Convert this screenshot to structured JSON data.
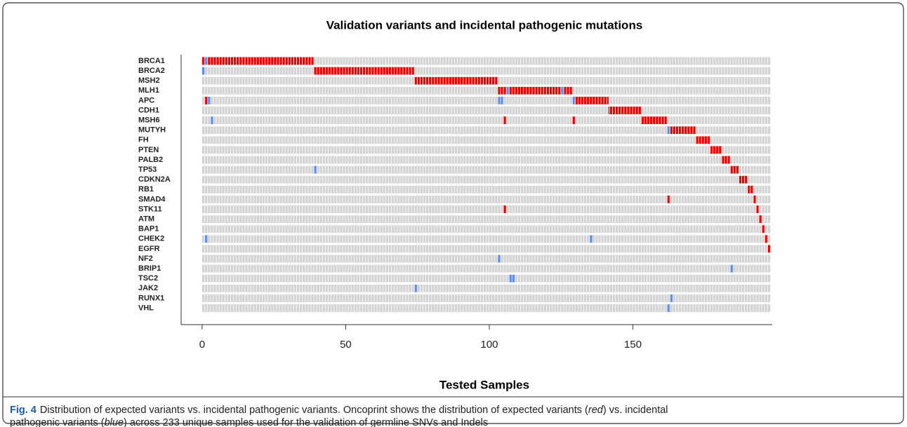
{
  "chart_data": {
    "type": "oncoprint",
    "title": "Validation variants and incidental pathogenic mutations",
    "x_label": "Tested Samples",
    "xlim": [
      -7.3,
      198.5
    ],
    "xticks": [
      0,
      50,
      100,
      150
    ],
    "series": [
      {
        "name": "expected",
        "color": "#ee0000"
      },
      {
        "name": "incidental",
        "color": "#5b8def"
      }
    ],
    "rows": [
      {
        "gene": "BRCA1",
        "expected": [
          [
            0,
            1
          ],
          [
            2,
            39
          ]
        ],
        "incidental": [
          [
            1,
            2
          ]
        ]
      },
      {
        "gene": "BRCA2",
        "expected": [
          [
            39,
            74
          ]
        ],
        "incidental": [
          [
            0,
            1
          ]
        ]
      },
      {
        "gene": "MSH2",
        "expected": [
          [
            74,
            103
          ]
        ],
        "incidental": []
      },
      {
        "gene": "MLH1",
        "expected": [
          [
            103,
            106
          ],
          [
            107,
            125
          ],
          [
            126,
            129
          ]
        ],
        "incidental": [
          [
            106,
            107
          ],
          [
            125,
            126
          ]
        ]
      },
      {
        "gene": "APC",
        "expected": [
          [
            1,
            2
          ],
          [
            130,
            141.5
          ]
        ],
        "incidental": [
          [
            2,
            3
          ],
          [
            103,
            105
          ],
          [
            129,
            130
          ]
        ]
      },
      {
        "gene": "CDH1",
        "expected": [
          [
            141.5,
            153
          ]
        ],
        "incidental": []
      },
      {
        "gene": "MSH6",
        "expected": [
          [
            105,
            106
          ],
          [
            129,
            130
          ],
          [
            153,
            162
          ]
        ],
        "incidental": [
          [
            3,
            4
          ]
        ]
      },
      {
        "gene": "MUTYH",
        "expected": [
          [
            163,
            172
          ]
        ],
        "incidental": [
          [
            162,
            163
          ]
        ]
      },
      {
        "gene": "FH",
        "expected": [
          [
            172,
            177
          ]
        ],
        "incidental": []
      },
      {
        "gene": "PTEN",
        "expected": [
          [
            177,
            181
          ]
        ],
        "incidental": []
      },
      {
        "gene": "PALB2",
        "expected": [
          [
            181,
            184
          ]
        ],
        "incidental": []
      },
      {
        "gene": "TP53",
        "expected": [
          [
            184,
            187
          ]
        ],
        "incidental": [
          [
            39,
            40
          ]
        ]
      },
      {
        "gene": "CDKN2A",
        "expected": [
          [
            187,
            190
          ]
        ],
        "incidental": []
      },
      {
        "gene": "RB1",
        "expected": [
          [
            190,
            192
          ]
        ],
        "incidental": []
      },
      {
        "gene": "SMAD4",
        "expected": [
          [
            162,
            163
          ],
          [
            192,
            193
          ]
        ],
        "incidental": []
      },
      {
        "gene": "STK11",
        "expected": [
          [
            105,
            106
          ],
          [
            193,
            194
          ]
        ],
        "incidental": []
      },
      {
        "gene": "ATM",
        "expected": [
          [
            194,
            195
          ]
        ],
        "incidental": []
      },
      {
        "gene": "BAP1",
        "expected": [
          [
            195,
            196
          ]
        ],
        "incidental": []
      },
      {
        "gene": "CHEK2",
        "expected": [
          [
            196,
            197
          ]
        ],
        "incidental": [
          [
            1,
            2
          ],
          [
            135,
            136
          ]
        ]
      },
      {
        "gene": "EGFR",
        "expected": [
          [
            197,
            198
          ]
        ],
        "incidental": []
      },
      {
        "gene": "NF2",
        "expected": [],
        "incidental": [
          [
            103,
            104
          ]
        ]
      },
      {
        "gene": "BRIP1",
        "expected": [],
        "incidental": [
          [
            184,
            185
          ]
        ]
      },
      {
        "gene": "TSC2",
        "expected": [],
        "incidental": [
          [
            107,
            109
          ]
        ]
      },
      {
        "gene": "JAK2",
        "expected": [],
        "incidental": [
          [
            74,
            75
          ]
        ]
      },
      {
        "gene": "RUNX1",
        "expected": [],
        "incidental": [
          [
            163,
            164
          ]
        ]
      },
      {
        "gene": "VHL",
        "expected": [],
        "incidental": [
          [
            162,
            163
          ]
        ]
      }
    ]
  },
  "caption": {
    "label": "Fig. 4",
    "text_1": "Distribution of expected variants vs. incidental pathogenic variants. Oncoprint shows the distribution of expected variants (",
    "emph_1": "red",
    "text_2": ") vs. incidental",
    "text_3": "pathogenic variants (",
    "emph_2": "blue",
    "text_4": ") across 233 unique samples used for the validation of germline SNVs and Indels"
  }
}
